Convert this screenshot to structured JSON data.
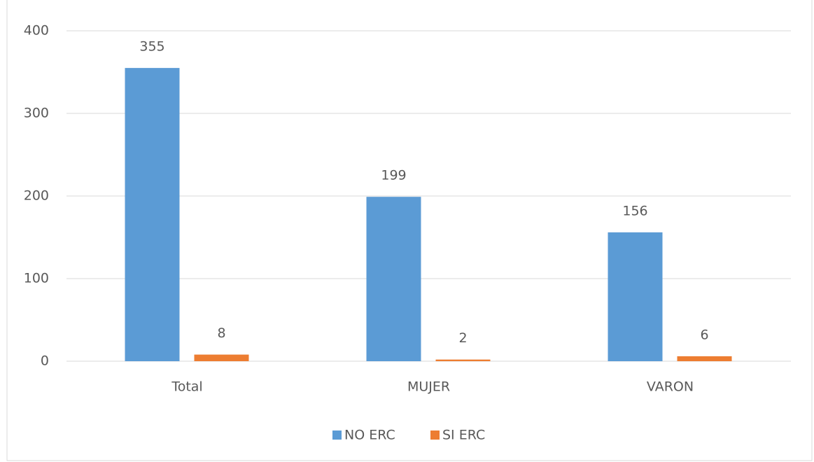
{
  "chart_data": {
    "type": "bar",
    "categories": [
      "Total",
      "MUJER",
      "VARON"
    ],
    "series": [
      {
        "name": "NO ERC",
        "color": "#5b9bd5",
        "values": [
          355,
          199,
          156
        ]
      },
      {
        "name": "SI ERC",
        "color": "#ed7d31",
        "values": [
          8,
          2,
          6
        ]
      }
    ],
    "ylim": [
      0,
      400
    ],
    "yticks": [
      0,
      100,
      200,
      300,
      400
    ],
    "grid": true,
    "legend": "bottom"
  }
}
